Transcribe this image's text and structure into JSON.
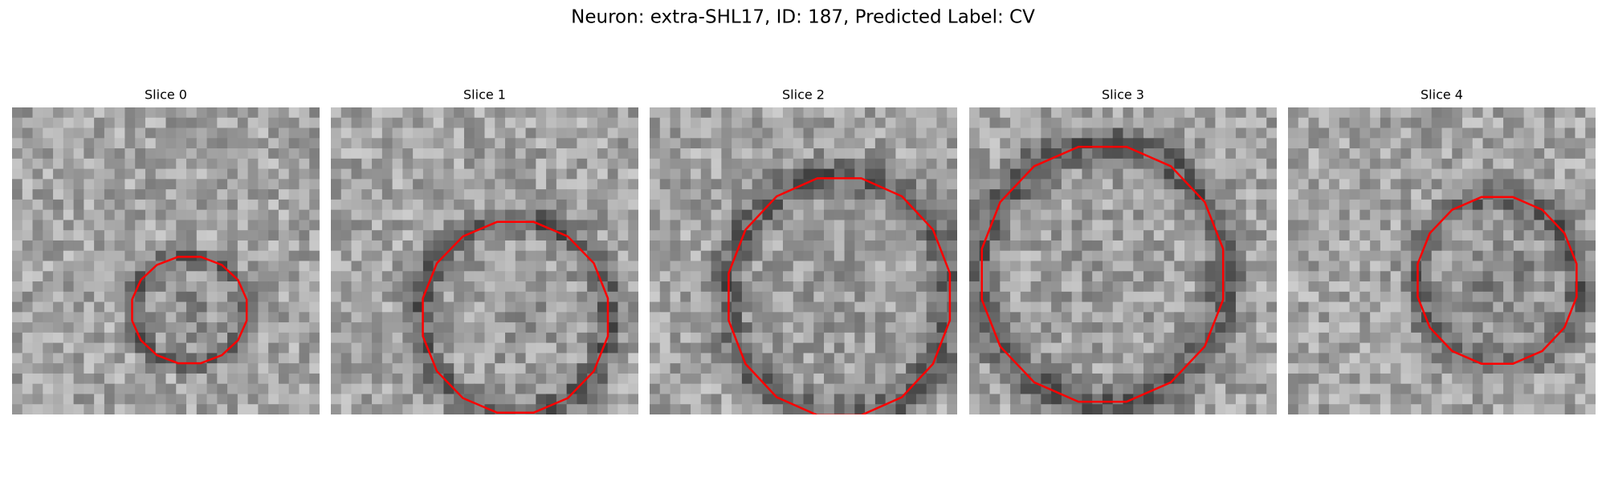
{
  "title": "Neuron: extra-SHL17, ID: 187, Predicted Label: CV",
  "panels": [
    {
      "title": "Slice 0"
    },
    {
      "title": "Slice 1"
    },
    {
      "title": "Slice 2"
    },
    {
      "title": "Slice 3"
    },
    {
      "title": "Slice 4"
    }
  ]
}
